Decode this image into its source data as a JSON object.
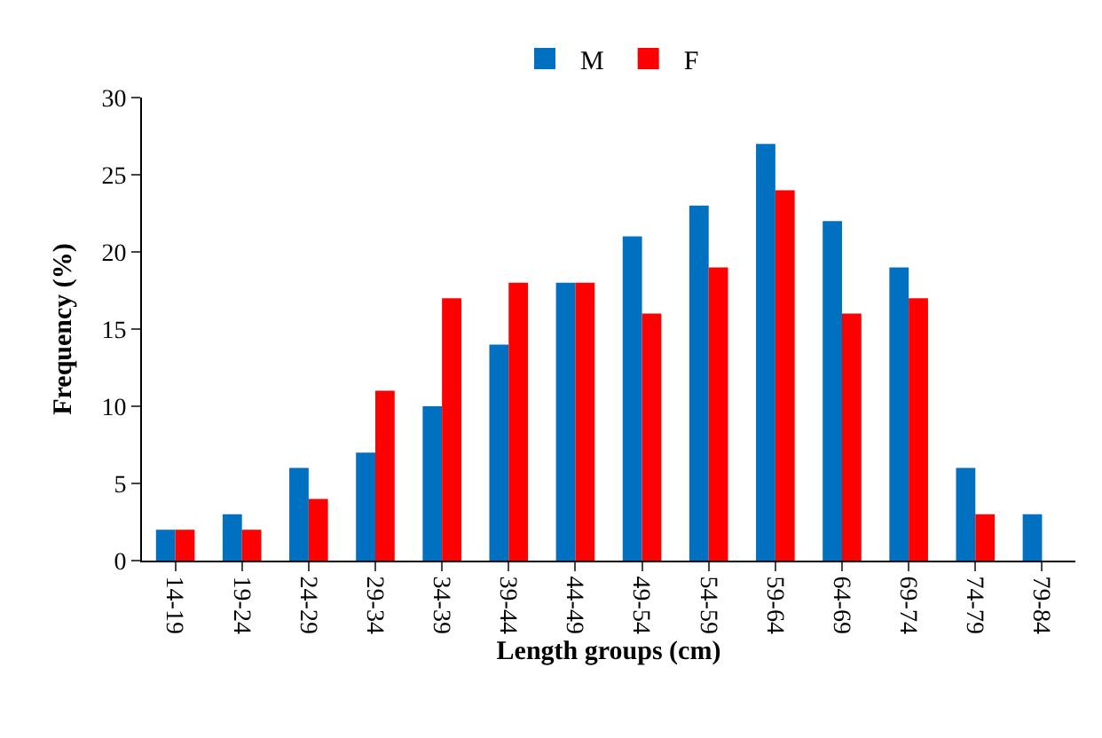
{
  "chart_data": {
    "type": "bar",
    "xlabel": "Length groups (cm)",
    "ylabel": "Frequency (%)",
    "categories": [
      "14-19",
      "19-24",
      "24-29",
      "29-34",
      "34-39",
      "39-44",
      "44-49",
      "49-54",
      "54-59",
      "59-64",
      "64-69",
      "69-74",
      "74-79",
      "79-84"
    ],
    "series": [
      {
        "name": "M",
        "color": "#0070c0",
        "values": [
          2,
          3,
          6,
          7,
          10,
          14,
          18,
          21,
          23,
          27,
          22,
          19,
          6,
          3
        ]
      },
      {
        "name": "F",
        "color": "#ff0000",
        "values": [
          2,
          2,
          4,
          11,
          17,
          18,
          18,
          16,
          19,
          24,
          16,
          17,
          3,
          null
        ]
      }
    ],
    "ylim": [
      0,
      30
    ],
    "yticks": [
      0,
      5,
      10,
      15,
      20,
      25,
      30
    ],
    "grid": false,
    "legend": "top"
  }
}
